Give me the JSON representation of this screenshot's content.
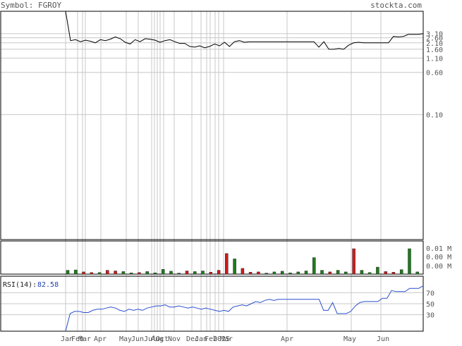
{
  "header": {
    "symbol_label": "Symbol: FGROY",
    "site": "stockta.com"
  },
  "colors": {
    "grid": "#c8c8c8",
    "price_line": "#000000",
    "rsi_line": "#2a4fcf",
    "text": "#555555",
    "rsi_value": "#1f3fb0",
    "vol_up": "#1e7d1e",
    "vol_down": "#d11a1a",
    "frame": "#000000"
  },
  "chart_data": [
    {
      "type": "line",
      "name": "price",
      "y_scale": "log",
      "y_ticks": [
        "3.10",
        "2.60",
        "2.10",
        "1.60",
        "1.10",
        "0.60",
        "0.10"
      ],
      "y_tick_values": [
        3.1,
        2.6,
        2.1,
        1.6,
        1.1,
        0.6,
        0.1
      ],
      "ylim": [
        0.0005,
        8
      ],
      "x_labels": [
        "Jan",
        "Feb",
        "Mar",
        "Apr",
        "May",
        "Jun",
        "Jul",
        "Aug",
        "Oct",
        "Nov",
        "Dec",
        "Jan",
        "Feb",
        "2025",
        "Mar",
        "Apr",
        "May",
        "Jun"
      ],
      "values": [
        8.0,
        2.3,
        2.4,
        2.2,
        2.35,
        2.25,
        2.1,
        2.4,
        2.3,
        2.45,
        2.7,
        2.5,
        2.15,
        2.0,
        2.4,
        2.2,
        2.5,
        2.45,
        2.35,
        2.15,
        2.3,
        2.4,
        2.2,
        2.05,
        2.05,
        1.8,
        1.75,
        1.85,
        1.7,
        1.8,
        2.0,
        1.85,
        2.15,
        1.8,
        2.2,
        2.3,
        2.15,
        2.2,
        2.2,
        2.2,
        2.2,
        2.2,
        2.2,
        2.2,
        2.2,
        2.2,
        2.2,
        2.2,
        2.2,
        2.2,
        2.2,
        1.75,
        2.2,
        1.6,
        1.6,
        1.65,
        1.6,
        1.9,
        2.1,
        2.15,
        2.1,
        2.1,
        2.1,
        2.1,
        2.1,
        2.1,
        2.75,
        2.7,
        2.75,
        3.0,
        3.0,
        3.0,
        3.1
      ]
    },
    {
      "type": "bar",
      "name": "volume",
      "y_ticks": [
        "0.01 M",
        "0.00 M",
        "0.00 M"
      ],
      "bars": [
        {
          "v": 0.12,
          "c": "up"
        },
        {
          "v": 0.13,
          "c": "up"
        },
        {
          "v": 0.07,
          "c": "down"
        },
        {
          "v": 0.05,
          "c": "down"
        },
        {
          "v": 0.05,
          "c": "up"
        },
        {
          "v": 0.12,
          "c": "down"
        },
        {
          "v": 0.1,
          "c": "down"
        },
        {
          "v": 0.08,
          "c": "up"
        },
        {
          "v": 0.04,
          "c": "up"
        },
        {
          "v": 0.05,
          "c": "down"
        },
        {
          "v": 0.08,
          "c": "up"
        },
        {
          "v": 0.04,
          "c": "up"
        },
        {
          "v": 0.15,
          "c": "up"
        },
        {
          "v": 0.09,
          "c": "up"
        },
        {
          "v": 0.03,
          "c": "up"
        },
        {
          "v": 0.1,
          "c": "down"
        },
        {
          "v": 0.08,
          "c": "up"
        },
        {
          "v": 0.1,
          "c": "up"
        },
        {
          "v": 0.06,
          "c": "down"
        },
        {
          "v": 0.12,
          "c": "down"
        },
        {
          "v": 0.65,
          "c": "down"
        },
        {
          "v": 0.48,
          "c": "up"
        },
        {
          "v": 0.18,
          "c": "down"
        },
        {
          "v": 0.06,
          "c": "down"
        },
        {
          "v": 0.07,
          "c": "down"
        },
        {
          "v": 0.03,
          "c": "up"
        },
        {
          "v": 0.07,
          "c": "up"
        },
        {
          "v": 0.09,
          "c": "up"
        },
        {
          "v": 0.04,
          "c": "up"
        },
        {
          "v": 0.07,
          "c": "up"
        },
        {
          "v": 0.1,
          "c": "up"
        },
        {
          "v": 0.52,
          "c": "up"
        },
        {
          "v": 0.12,
          "c": "up"
        },
        {
          "v": 0.07,
          "c": "down"
        },
        {
          "v": 0.12,
          "c": "up"
        },
        {
          "v": 0.07,
          "c": "up"
        },
        {
          "v": 0.8,
          "c": "down"
        },
        {
          "v": 0.12,
          "c": "up"
        },
        {
          "v": 0.05,
          "c": "up"
        },
        {
          "v": 0.22,
          "c": "up"
        },
        {
          "v": 0.08,
          "c": "down"
        },
        {
          "v": 0.06,
          "c": "down"
        },
        {
          "v": 0.14,
          "c": "up"
        },
        {
          "v": 0.8,
          "c": "up"
        },
        {
          "v": 0.07,
          "c": "up"
        }
      ]
    },
    {
      "type": "line",
      "name": "rsi",
      "label": "RSI(14):",
      "current_value": "82.58",
      "y_ticks": [
        "70",
        "50",
        "30"
      ],
      "y_tick_values": [
        70,
        50,
        30
      ],
      "ylim": [
        0,
        100
      ],
      "values": [
        0,
        32,
        36,
        36,
        34,
        34,
        38,
        40,
        40,
        42,
        44,
        42,
        38,
        36,
        40,
        38,
        40,
        38,
        42,
        44,
        46,
        46,
        48,
        44,
        44,
        46,
        44,
        42,
        44,
        42,
        40,
        42,
        40,
        38,
        36,
        38,
        36,
        44,
        46,
        48,
        46,
        50,
        54,
        52,
        56,
        58,
        56,
        58,
        58,
        58,
        58,
        58,
        58,
        58,
        58,
        58,
        58,
        38,
        38,
        52,
        32,
        32,
        32,
        36,
        46,
        52,
        54,
        54,
        54,
        54,
        60,
        60,
        74,
        72,
        72,
        72,
        78,
        78,
        78,
        82.58
      ]
    }
  ]
}
